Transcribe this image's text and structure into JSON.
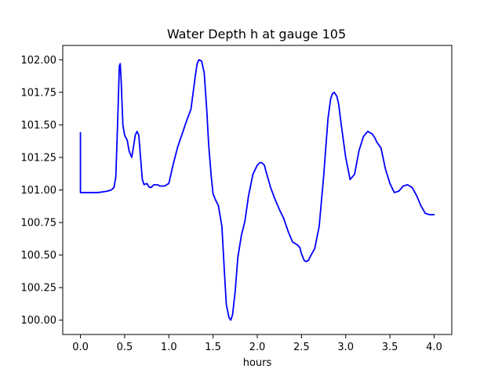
{
  "chart_data": {
    "type": "line",
    "title": "Water Depth h at gauge 105",
    "xlabel": "hours",
    "ylabel": "",
    "xlim": [
      -0.2,
      4.2
    ],
    "ylim": [
      99.89,
      102.11
    ],
    "grid": false,
    "legend": "none",
    "x_ticks": [
      "0.0",
      "0.5",
      "1.0",
      "1.5",
      "2.0",
      "2.5",
      "3.0",
      "3.5",
      "4.0"
    ],
    "y_ticks": [
      "100.00",
      "100.25",
      "100.50",
      "100.75",
      "101.00",
      "101.25",
      "101.50",
      "101.75",
      "102.00"
    ],
    "series": [
      {
        "color": "#0000ff",
        "x": [
          0.0,
          0.0,
          0.0,
          0.1,
          0.2,
          0.3,
          0.35,
          0.38,
          0.4,
          0.42,
          0.44,
          0.45,
          0.46,
          0.48,
          0.5,
          0.53,
          0.55,
          0.58,
          0.6,
          0.62,
          0.64,
          0.66,
          0.68,
          0.7,
          0.72,
          0.75,
          0.78,
          0.8,
          0.83,
          0.87,
          0.9,
          0.95,
          1.0,
          1.05,
          1.1,
          1.15,
          1.2,
          1.25,
          1.3,
          1.32,
          1.34,
          1.37,
          1.4,
          1.43,
          1.45,
          1.48,
          1.5,
          1.53,
          1.56,
          1.6,
          1.63,
          1.65,
          1.68,
          1.7,
          1.72,
          1.75,
          1.78,
          1.82,
          1.86,
          1.9,
          1.95,
          2.0,
          2.03,
          2.05,
          2.08,
          2.1,
          2.15,
          2.2,
          2.25,
          2.3,
          2.35,
          2.4,
          2.45,
          2.48,
          2.5,
          2.53,
          2.55,
          2.58,
          2.6,
          2.65,
          2.7,
          2.75,
          2.8,
          2.83,
          2.85,
          2.87,
          2.9,
          2.92,
          2.95,
          3.0,
          3.05,
          3.1,
          3.15,
          3.2,
          3.25,
          3.3,
          3.33,
          3.35,
          3.4,
          3.45,
          3.5,
          3.55,
          3.6,
          3.65,
          3.7,
          3.75,
          3.8,
          3.85,
          3.9,
          3.95,
          4.0
        ],
        "values": [
          101.44,
          100.98,
          100.98,
          100.98,
          100.98,
          100.99,
          101.0,
          101.02,
          101.1,
          101.5,
          101.95,
          101.97,
          101.85,
          101.5,
          101.42,
          101.38,
          101.3,
          101.25,
          101.33,
          101.42,
          101.45,
          101.42,
          101.25,
          101.08,
          101.04,
          101.05,
          101.02,
          101.02,
          101.04,
          101.04,
          101.03,
          101.03,
          101.05,
          101.2,
          101.33,
          101.43,
          101.53,
          101.62,
          101.88,
          101.97,
          102.0,
          101.99,
          101.9,
          101.6,
          101.35,
          101.1,
          100.97,
          100.92,
          100.88,
          100.72,
          100.35,
          100.12,
          100.02,
          100.0,
          100.04,
          100.22,
          100.48,
          100.65,
          100.76,
          100.95,
          101.12,
          101.19,
          101.21,
          101.21,
          101.19,
          101.14,
          101.02,
          100.93,
          100.85,
          100.78,
          100.68,
          100.6,
          100.58,
          100.56,
          100.51,
          100.46,
          100.45,
          100.46,
          100.49,
          100.55,
          100.72,
          101.1,
          101.55,
          101.7,
          101.74,
          101.75,
          101.72,
          101.66,
          101.5,
          101.25,
          101.08,
          101.12,
          101.3,
          101.41,
          101.45,
          101.43,
          101.4,
          101.37,
          101.32,
          101.16,
          101.05,
          100.98,
          100.99,
          101.03,
          101.04,
          101.02,
          100.96,
          100.88,
          100.82,
          100.81,
          100.81
        ]
      }
    ]
  }
}
